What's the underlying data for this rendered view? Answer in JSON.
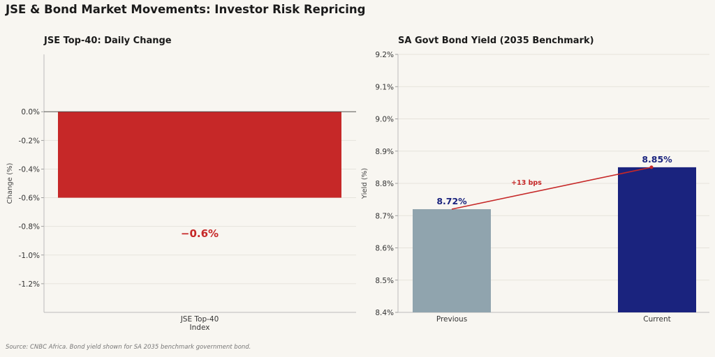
{
  "title": "JSE & Bond Market Movements: Investor Risk Repricing",
  "source_note": "Source: CNBC Africa. Bond yield shown for SA 2035 benchmark government bond.",
  "colors": {
    "background": "#f8f6f1",
    "jse_bar": "#c62828",
    "previous_bar": "#90a4ae",
    "current_bar": "#1a237e",
    "change_line": "#c62828",
    "grid": "#e6e3dc"
  },
  "chart_data": [
    {
      "type": "bar",
      "title": "JSE Top-40: Daily Change",
      "categories": [
        "JSE Top-40\nIndex"
      ],
      "values": [
        -0.6
      ],
      "ylabel": "Change (%)",
      "xlabel": "",
      "ylim": [
        -1.4,
        0.4
      ],
      "yticks": [
        0.0,
        -0.2,
        -0.4,
        -0.6,
        -0.8,
        -1.0,
        -1.2
      ],
      "ytick_labels": [
        "0.0%",
        "-0.2%",
        "-0.4%",
        "-0.6%",
        "-0.8%",
        "-1.0%",
        "-1.2%"
      ],
      "annotation": "−0.6%",
      "zero_line": true,
      "grid": true
    },
    {
      "type": "bar",
      "title": "SA Govt Bond Yield (2035 Benchmark)",
      "categories": [
        "Previous",
        "Current"
      ],
      "values": [
        8.72,
        8.85
      ],
      "data_labels": [
        "8.72%",
        "8.85%"
      ],
      "ylabel": "Yield (%)",
      "xlabel": "",
      "ylim": [
        8.4,
        9.2
      ],
      "yticks": [
        8.4,
        8.5,
        8.6,
        8.7,
        8.8,
        8.9,
        9.0,
        9.1,
        9.2
      ],
      "ytick_labels": [
        "8.4%",
        "8.5%",
        "8.6%",
        "8.7%",
        "8.8%",
        "8.9%",
        "9.0%",
        "9.1%",
        "9.2%"
      ],
      "change_line": {
        "from": 8.72,
        "to": 8.85,
        "label": "+13 bps"
      },
      "grid": true
    }
  ]
}
